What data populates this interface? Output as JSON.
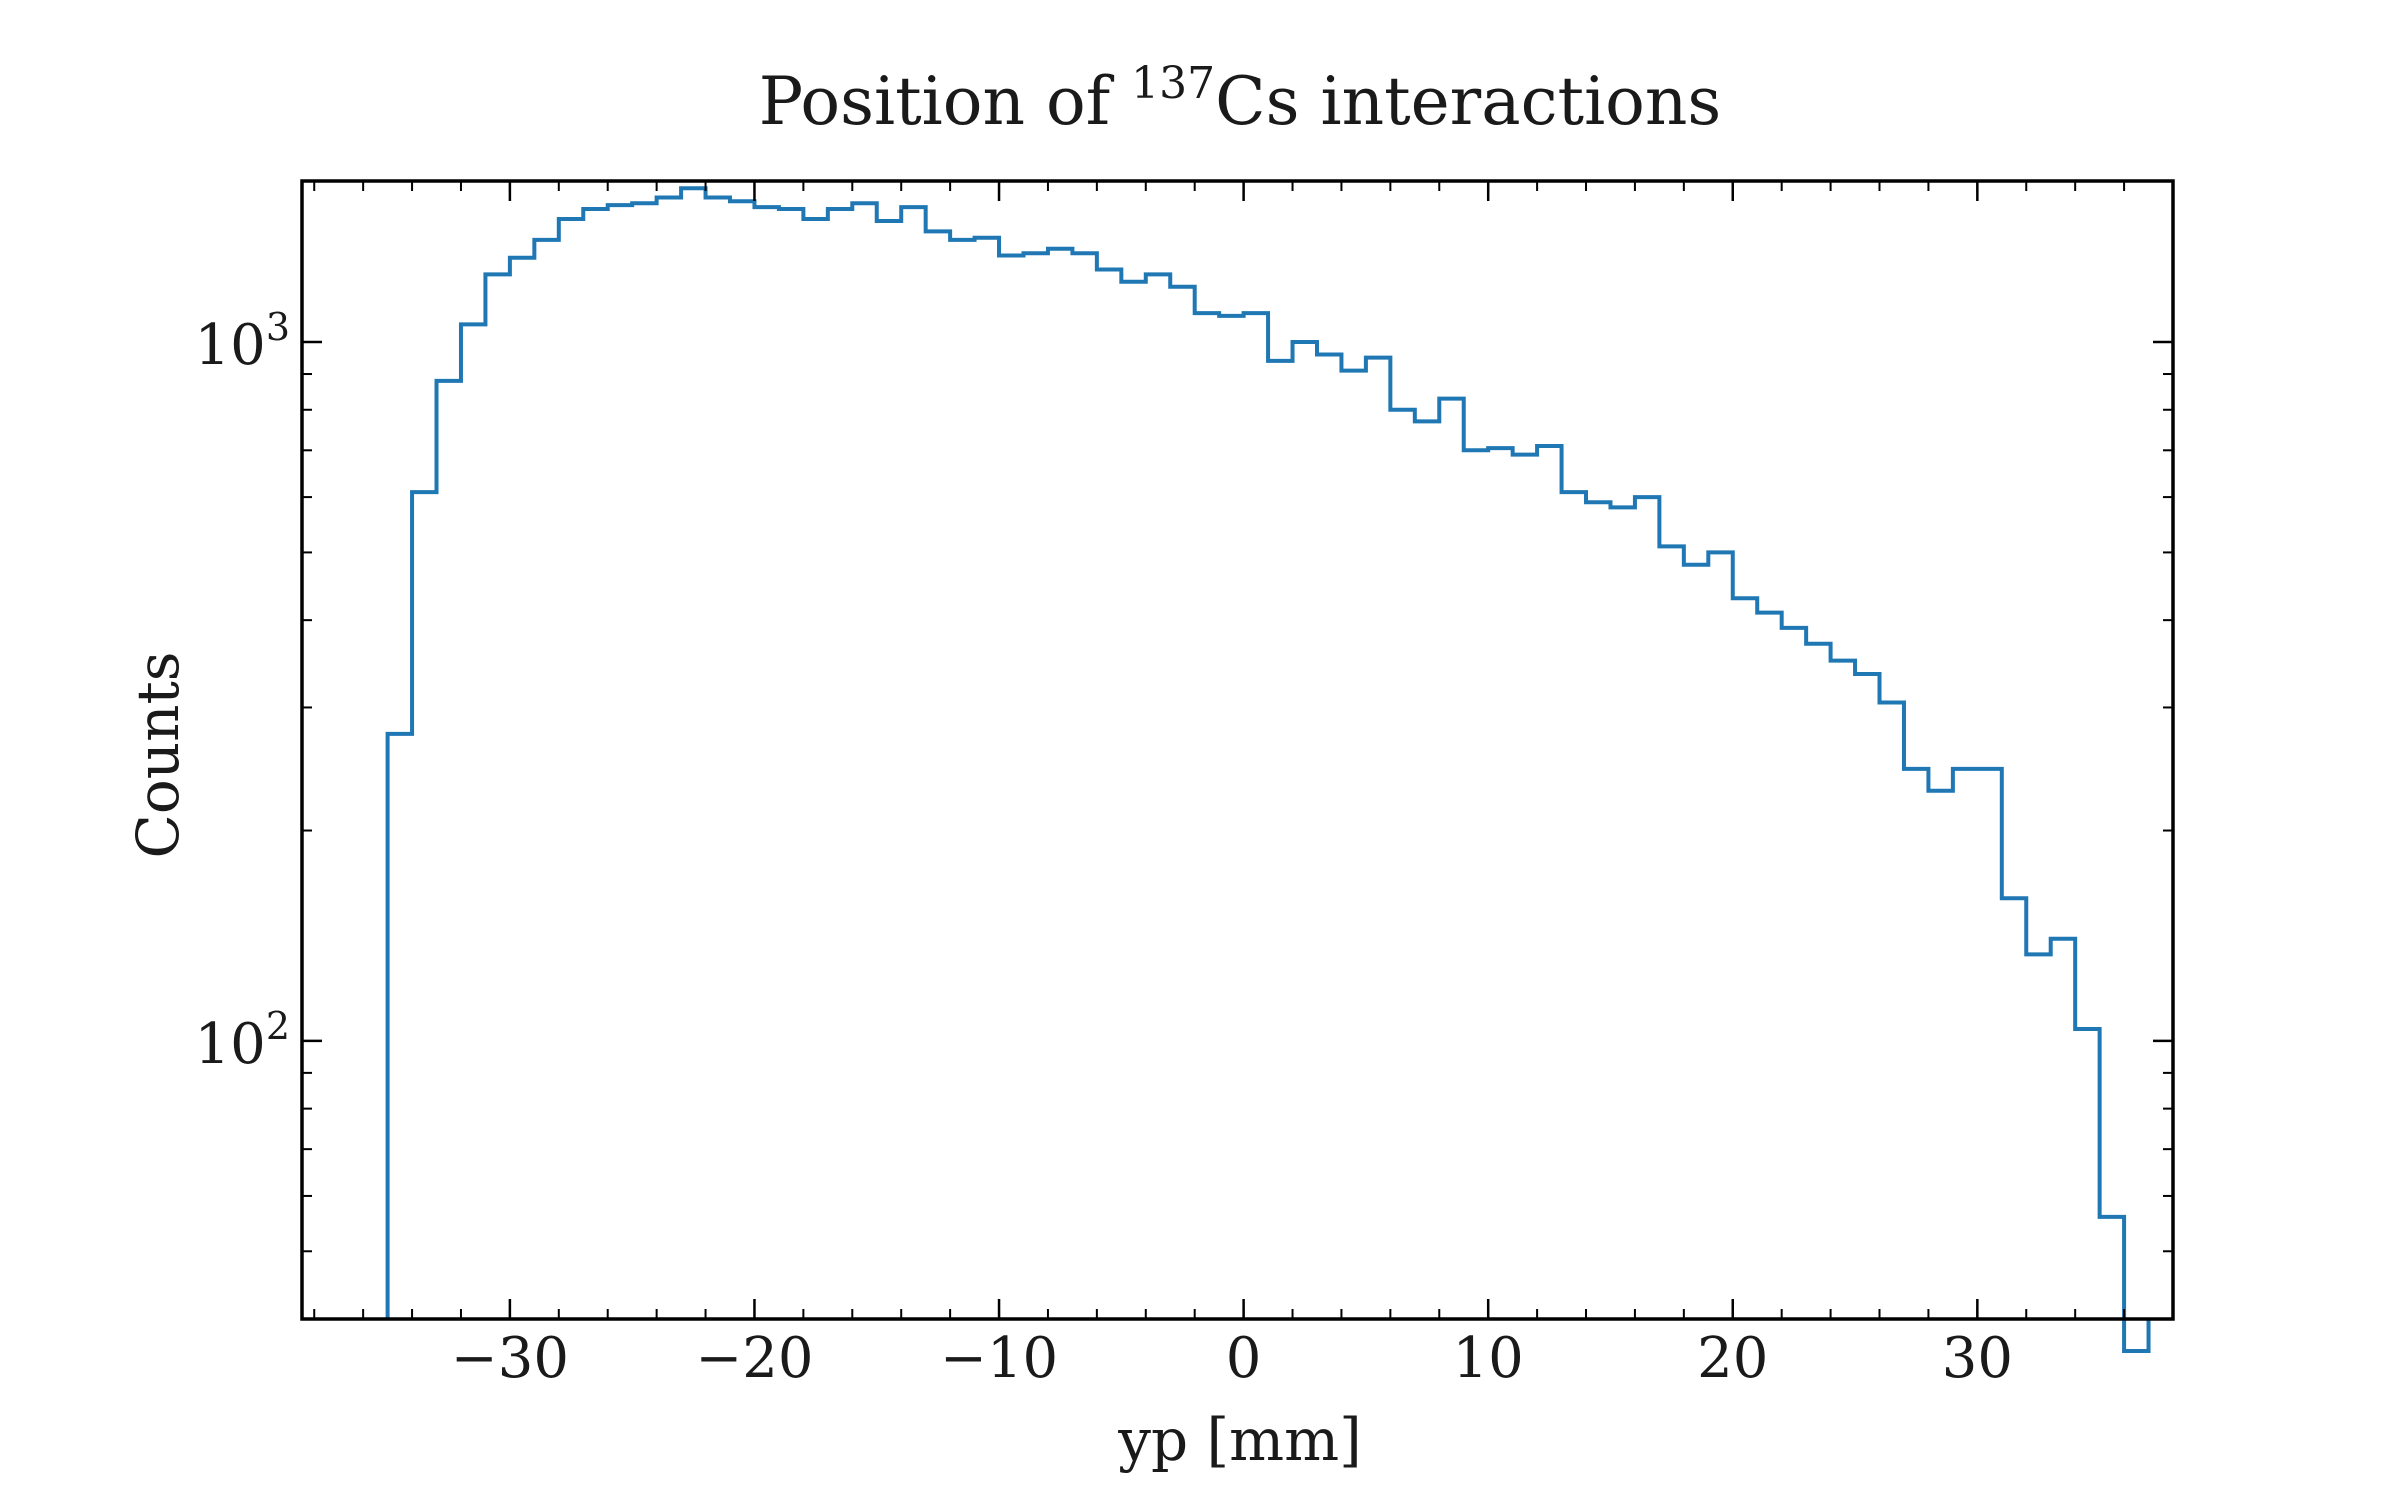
{
  "chart_data": {
    "type": "histogram",
    "title_main": "Position of ",
    "title_sup": "137",
    "title_rest": "Cs interactions",
    "xlabel": "yp [mm]",
    "ylabel": "Counts",
    "yscale": "log",
    "xlim": [
      -38.5,
      38.0
    ],
    "ylim": [
      40,
      1700
    ],
    "bins_start": -35,
    "bin_width": 1.0,
    "counts": [
      275,
      610,
      880,
      1060,
      1250,
      1320,
      1400,
      1500,
      1550,
      1570,
      1580,
      1610,
      1660,
      1610,
      1590,
      1560,
      1550,
      1500,
      1550,
      1580,
      1490,
      1560,
      1440,
      1400,
      1410,
      1330,
      1340,
      1360,
      1340,
      1270,
      1220,
      1250,
      1200,
      1100,
      1090,
      1100,
      940,
      1000,
      960,
      910,
      950,
      800,
      770,
      830,
      700,
      705,
      690,
      710,
      610,
      590,
      580,
      600,
      510,
      480,
      500,
      430,
      410,
      390,
      370,
      350,
      335,
      305,
      245,
      228,
      245,
      245,
      160,
      133,
      140,
      104,
      56,
      36
    ],
    "xticks": [
      -30,
      -20,
      -10,
      0,
      10,
      20,
      30
    ],
    "xtick_labels": [
      "−30",
      "−20",
      "−10",
      "0",
      "10",
      "20",
      "30"
    ],
    "yticks": [
      100,
      1000
    ],
    "ytick_base": "10",
    "ytick_exps": [
      "2",
      "3"
    ],
    "line_color": "#1f77b4",
    "grid": false,
    "legend": false
  }
}
